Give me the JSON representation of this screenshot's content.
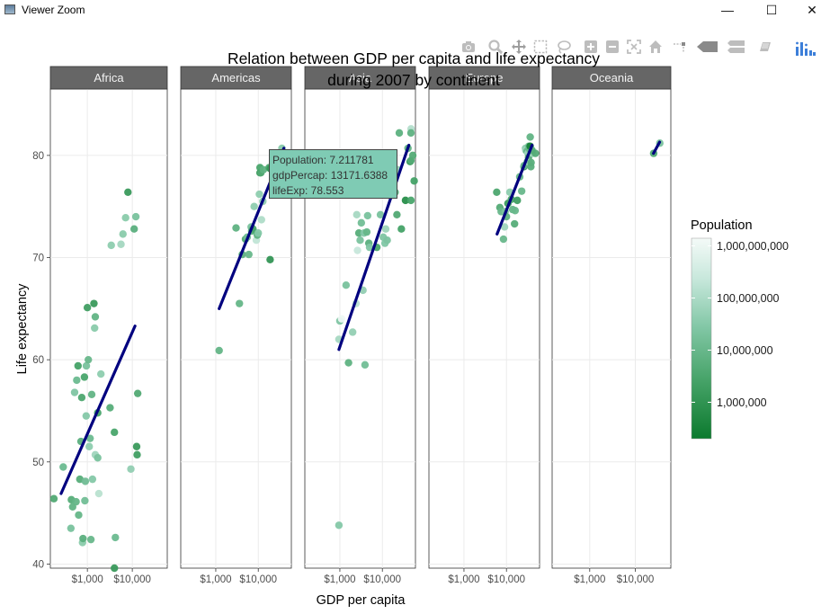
{
  "window": {
    "title": "Viewer Zoom",
    "minimize_glyph": "—",
    "maximize_glyph": "☐",
    "close_glyph": "✕"
  },
  "modebar": {
    "buttons": [
      "camera-icon",
      "zoom-icon",
      "pan-icon",
      "box-select-icon",
      "lasso-select-icon",
      "zoom-in-icon",
      "zoom-out-icon",
      "autoscale-icon",
      "reset-axes-icon",
      "spike-lines-icon",
      "hover-closest-icon",
      "hover-compare-icon",
      "edit-icon",
      "plotly-logo-icon"
    ]
  },
  "tooltip": {
    "line1": "Population: 7.211781",
    "line2": "gdpPercap: 13171.6388",
    "line3": "lifeExp: 78.553",
    "bg": "#7fcbb4"
  },
  "colors": {
    "strip_bg": "#666666",
    "trend_line": "#00007f",
    "grid": "#ebebeb",
    "color_low": "#0c7a2e",
    "color_high": "#f4faf8"
  },
  "chart_data": {
    "type": "scatter",
    "title": "Relation between GDP per capita and life expectancy during 2007 by continent",
    "title_lines": [
      "Relation between GDP per capita and life expectancy",
      "during 2007 by continent"
    ],
    "xlabel": "GDP per capita",
    "ylabel": "Life expectancy",
    "x_scale": "log",
    "xlim": [
      150,
      60000
    ],
    "ylim": [
      39.6,
      86.5
    ],
    "x_ticks": [
      {
        "v": 1000,
        "label": "$1,000"
      },
      {
        "v": 10000,
        "label": "$10,000"
      }
    ],
    "y_ticks": [
      {
        "v": 40,
        "label": "40"
      },
      {
        "v": 50,
        "label": "50"
      },
      {
        "v": 60,
        "label": "60"
      },
      {
        "v": 70,
        "label": "70"
      },
      {
        "v": 80,
        "label": "80"
      }
    ],
    "legend": {
      "title": "Population",
      "scale": "log",
      "placement": "right",
      "range": [
        200000,
        1400000000
      ],
      "ticks": [
        {
          "v": 1000000,
          "label": "1,000,000"
        },
        {
          "v": 10000000,
          "label": "10,000,000"
        },
        {
          "v": 100000000,
          "label": "100,000,000"
        },
        {
          "v": 1000000000,
          "label": "1,000,000,000"
        }
      ]
    },
    "panels": [
      {
        "name": "Africa",
        "trend": [
          [
            260,
            46.9
          ],
          [
            11500,
            63.3
          ]
        ],
        "points": [
          [
            180,
            46.4,
            4000000
          ],
          [
            290,
            49.5,
            12000000
          ],
          [
            430,
            43.5,
            20000000
          ],
          [
            470,
            45.6,
            8000000
          ],
          [
            440,
            46.3,
            5000000
          ],
          [
            560,
            46.1,
            9000000
          ],
          [
            520,
            56.8,
            25000000
          ],
          [
            580,
            58.0,
            12000000
          ],
          [
            620,
            59.4,
            2500000
          ],
          [
            640,
            44.8,
            9000000
          ],
          [
            680,
            48.3,
            5000000
          ],
          [
            750,
            56.3,
            3500000
          ],
          [
            780,
            42.1,
            35000000
          ],
          [
            800,
            42.5,
            6000000
          ],
          [
            900,
            48.1,
            14000000
          ],
          [
            720,
            52.0,
            6000000
          ],
          [
            880,
            46.2,
            15000000
          ],
          [
            940,
            54.5,
            30000000
          ],
          [
            860,
            58.3,
            3000000
          ],
          [
            950,
            59.4,
            20000000
          ],
          [
            1000,
            65.1,
            2000000
          ],
          [
            1050,
            60.0,
            10000000
          ],
          [
            1100,
            51.5,
            40000000
          ],
          [
            1150,
            52.3,
            12000000
          ],
          [
            1200,
            42.4,
            10000000
          ],
          [
            1300,
            48.3,
            30000000
          ],
          [
            1250,
            56.6,
            8000000
          ],
          [
            1400,
            65.5,
            1500000
          ],
          [
            1450,
            63.1,
            35000000
          ],
          [
            1500,
            64.2,
            8000000
          ],
          [
            1500,
            50.7,
            70000000
          ],
          [
            1700,
            54.8,
            3000000
          ],
          [
            1800,
            46.9,
            150000000
          ],
          [
            1700,
            50.4,
            20000000
          ],
          [
            2000,
            58.6,
            40000000
          ],
          [
            3200,
            55.3,
            5000000
          ],
          [
            4000,
            52.9,
            3000000
          ],
          [
            4200,
            42.6,
            12000000
          ],
          [
            4000,
            39.6,
            1500000
          ],
          [
            3400,
            71.2,
            40000000
          ],
          [
            5600,
            71.3,
            80000000
          ],
          [
            6200,
            72.3,
            35000000
          ],
          [
            7100,
            73.9,
            35000000
          ],
          [
            8000,
            76.4,
            1500000
          ],
          [
            9300,
            49.3,
            45000000
          ],
          [
            12000,
            74.0,
            20000000
          ],
          [
            11000,
            72.8,
            6000000
          ],
          [
            12500,
            51.5,
            1500000
          ],
          [
            12800,
            50.7,
            2000000
          ],
          [
            13200,
            56.7,
            4000000
          ]
        ]
      },
      {
        "name": "Americas",
        "trend": [
          [
            1200,
            65.0
          ],
          [
            40000,
            80.7
          ]
        ],
        "points": [
          [
            1200,
            60.9,
            8500000
          ],
          [
            3000,
            72.9,
            7000000
          ],
          [
            3600,
            65.5,
            9000000
          ],
          [
            4200,
            70.3,
            7000000
          ],
          [
            5000,
            71.8,
            4000000
          ],
          [
            5500,
            72.0,
            14000000
          ],
          [
            6000,
            70.3,
            10000000
          ],
          [
            6800,
            73.0,
            20000000
          ],
          [
            7000,
            72.6,
            5000000
          ],
          [
            7500,
            72.8,
            3000000
          ],
          [
            8000,
            75.0,
            40000000
          ],
          [
            9000,
            71.7,
            190000000
          ],
          [
            9500,
            72.2,
            6500000
          ],
          [
            10000,
            72.4,
            29000000
          ],
          [
            10600,
            76.2,
            40000000
          ],
          [
            11000,
            78.3,
            1000000
          ],
          [
            11500,
            78.3,
            4000000
          ],
          [
            11000,
            78.8,
            3000000
          ],
          [
            11900,
            73.7,
            110000000
          ],
          [
            12800,
            75.5,
            44000000
          ],
          [
            13200,
            78.6,
            7200000
          ],
          [
            18000,
            78.8,
            3500000
          ],
          [
            19300,
            78.7,
            1300000
          ],
          [
            19000,
            69.8,
            1100000
          ],
          [
            36000,
            80.7,
            33000000
          ],
          [
            42000,
            78.2,
            300000000
          ]
        ]
      },
      {
        "name": "Asia",
        "trend": [
          [
            950,
            61.0
          ],
          [
            42000,
            81.0
          ]
        ],
        "points": [
          [
            950,
            43.8,
            30000000
          ],
          [
            950,
            62.0,
            85000000
          ],
          [
            1000,
            63.8,
            25000000
          ],
          [
            1100,
            64.0,
            1100000000
          ],
          [
            1400,
            67.3,
            20000000
          ],
          [
            1600,
            59.7,
            7000000
          ],
          [
            2000,
            62.7,
            47000000
          ],
          [
            2400,
            65.5,
            160000000
          ],
          [
            2500,
            74.2,
            85000000
          ],
          [
            2600,
            70.7,
            230000000
          ],
          [
            2800,
            72.4,
            5000000
          ],
          [
            3000,
            71.7,
            20000000
          ],
          [
            3200,
            73.4,
            15000000
          ],
          [
            3500,
            66.8,
            45000000
          ],
          [
            3700,
            72.4,
            28000000
          ],
          [
            4300,
            72.5,
            9000000
          ],
          [
            4500,
            74.1,
            20000000
          ],
          [
            4800,
            71.4,
            6000000
          ],
          [
            3900,
            59.5,
            15000000
          ],
          [
            5000,
            71.0,
            25000000
          ],
          [
            7400,
            71.0,
            3000000
          ],
          [
            9000,
            74.2,
            20000000
          ],
          [
            10500,
            72.0,
            25000000
          ],
          [
            11500,
            71.4,
            27000000
          ],
          [
            12000,
            72.8,
            65000000
          ],
          [
            13000,
            71.7,
            22000000
          ],
          [
            22000,
            74.2,
            4000000
          ],
          [
            20000,
            76.4,
            6000000
          ],
          [
            23000,
            78.6,
            50000000
          ],
          [
            25000,
            82.2,
            6500000
          ],
          [
            28000,
            72.8,
            2500000
          ],
          [
            35000,
            75.6,
            700000
          ],
          [
            40000,
            80.7,
            7000000
          ],
          [
            45000,
            79.4,
            1000000
          ],
          [
            47000,
            79.5,
            4500000
          ],
          [
            47300,
            82.6,
            127000000
          ],
          [
            47000,
            82.2,
            7000000
          ],
          [
            47000,
            75.6,
            3000000
          ],
          [
            56000,
            77.5,
            2500000
          ],
          [
            52000,
            80.0,
            4500000
          ]
        ]
      },
      {
        "name": "Europe",
        "trend": [
          [
            6000,
            72.3
          ],
          [
            40000,
            81.0
          ]
        ],
        "points": [
          [
            5900,
            76.4,
            3500000
          ],
          [
            7000,
            74.9,
            4500000
          ],
          [
            7500,
            74.5,
            10000000
          ],
          [
            8500,
            71.8,
            10000000
          ],
          [
            9000,
            73.0,
            70000000
          ],
          [
            9300,
            74.5,
            20000000
          ],
          [
            10000,
            74.0,
            7000000
          ],
          [
            10800,
            75.3,
            1600000
          ],
          [
            12000,
            76.4,
            38000000
          ],
          [
            13000,
            75.7,
            3000000
          ],
          [
            14000,
            74.7,
            9000000
          ],
          [
            15500,
            73.3,
            5000000
          ],
          [
            16000,
            74.6,
            10000000
          ],
          [
            18000,
            75.6,
            2000000
          ],
          [
            20500,
            77.9,
            10000000
          ],
          [
            22800,
            76.5,
            10000000
          ],
          [
            25800,
            78.9,
            1300000
          ],
          [
            26000,
            79.0,
            10000000
          ],
          [
            28000,
            80.7,
            39000000
          ],
          [
            28500,
            80.5,
            58000000
          ],
          [
            30500,
            80.4,
            8000000
          ],
          [
            31000,
            79.4,
            9000000
          ],
          [
            32000,
            80.2,
            60000000
          ],
          [
            33000,
            79.8,
            4100000
          ],
          [
            33500,
            80.9,
            16000000
          ],
          [
            34500,
            79.3,
            82000000
          ],
          [
            35000,
            80.6,
            9000000
          ],
          [
            36000,
            80.9,
            300000
          ],
          [
            36200,
            81.8,
            8000000
          ],
          [
            37500,
            78.9,
            5500000
          ],
          [
            38000,
            79.3,
            5400000
          ],
          [
            40700,
            80.2,
            60000000
          ],
          [
            40000,
            80.5,
            5000000
          ],
          [
            48000,
            80.2,
            4600000
          ]
        ]
      },
      {
        "name": "Oceania",
        "trend": [
          [
            25000,
            80.2
          ],
          [
            34000,
            81.3
          ]
        ],
        "points": [
          [
            25200,
            80.2,
            4100000
          ],
          [
            34400,
            81.2,
            20400000
          ]
        ]
      }
    ]
  }
}
